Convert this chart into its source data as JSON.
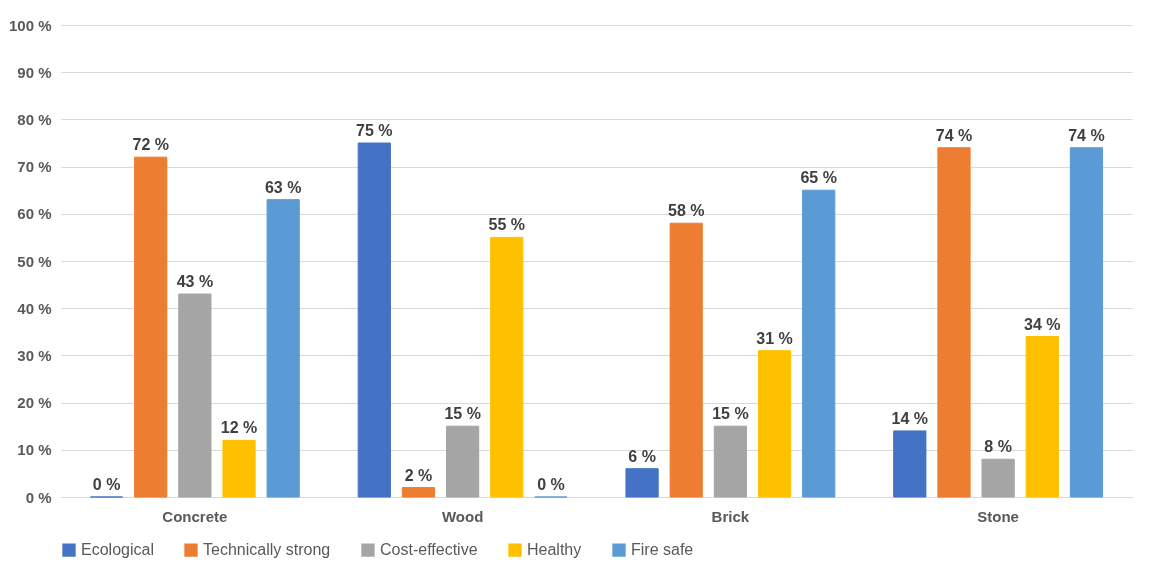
{
  "chart_data": {
    "type": "bar",
    "categories": [
      "Concrete",
      "Wood",
      "Brick",
      "Stone"
    ],
    "series": [
      {
        "name": "Ecological",
        "color": "#4472c4",
        "values": [
          0,
          75,
          6,
          14
        ],
        "value_labels": [
          "0 %",
          "75 %",
          "6 %",
          "14 %"
        ]
      },
      {
        "name": "Technically strong",
        "color": "#ed7d31",
        "values": [
          72,
          2,
          58,
          74
        ],
        "value_labels": [
          "72 %",
          "2 %",
          "58 %",
          "74 %"
        ]
      },
      {
        "name": "Cost-effective",
        "color": "#a5a5a5",
        "values": [
          43,
          15,
          15,
          8
        ],
        "value_labels": [
          "43 %",
          "15 %",
          "15 %",
          "8 %"
        ]
      },
      {
        "name": "Healthy",
        "color": "#ffc000",
        "values": [
          12,
          55,
          31,
          34
        ],
        "value_labels": [
          "12 %",
          "55 %",
          "31 %",
          "34 %"
        ]
      },
      {
        "name": "Fire safe",
        "color": "#5b9bd5",
        "values": [
          63,
          0,
          65,
          74
        ],
        "value_labels": [
          "63 %",
          "0 %",
          "65 %",
          "74 %"
        ]
      }
    ],
    "ylim": [
      0,
      100
    ],
    "yticks": [
      {
        "value": 0,
        "label": "0 %"
      },
      {
        "value": 10,
        "label": "10 %"
      },
      {
        "value": 20,
        "label": "20 %"
      },
      {
        "value": 30,
        "label": "30 %"
      },
      {
        "value": 40,
        "label": "40 %"
      },
      {
        "value": 50,
        "label": "50 %"
      },
      {
        "value": 60,
        "label": "60 %"
      },
      {
        "value": 70,
        "label": "70 %"
      },
      {
        "value": 80,
        "label": "80 %"
      },
      {
        "value": 90,
        "label": "90 %"
      },
      {
        "value": 100,
        "label": "100 %"
      }
    ],
    "grid": "y",
    "legend": "bottom"
  }
}
